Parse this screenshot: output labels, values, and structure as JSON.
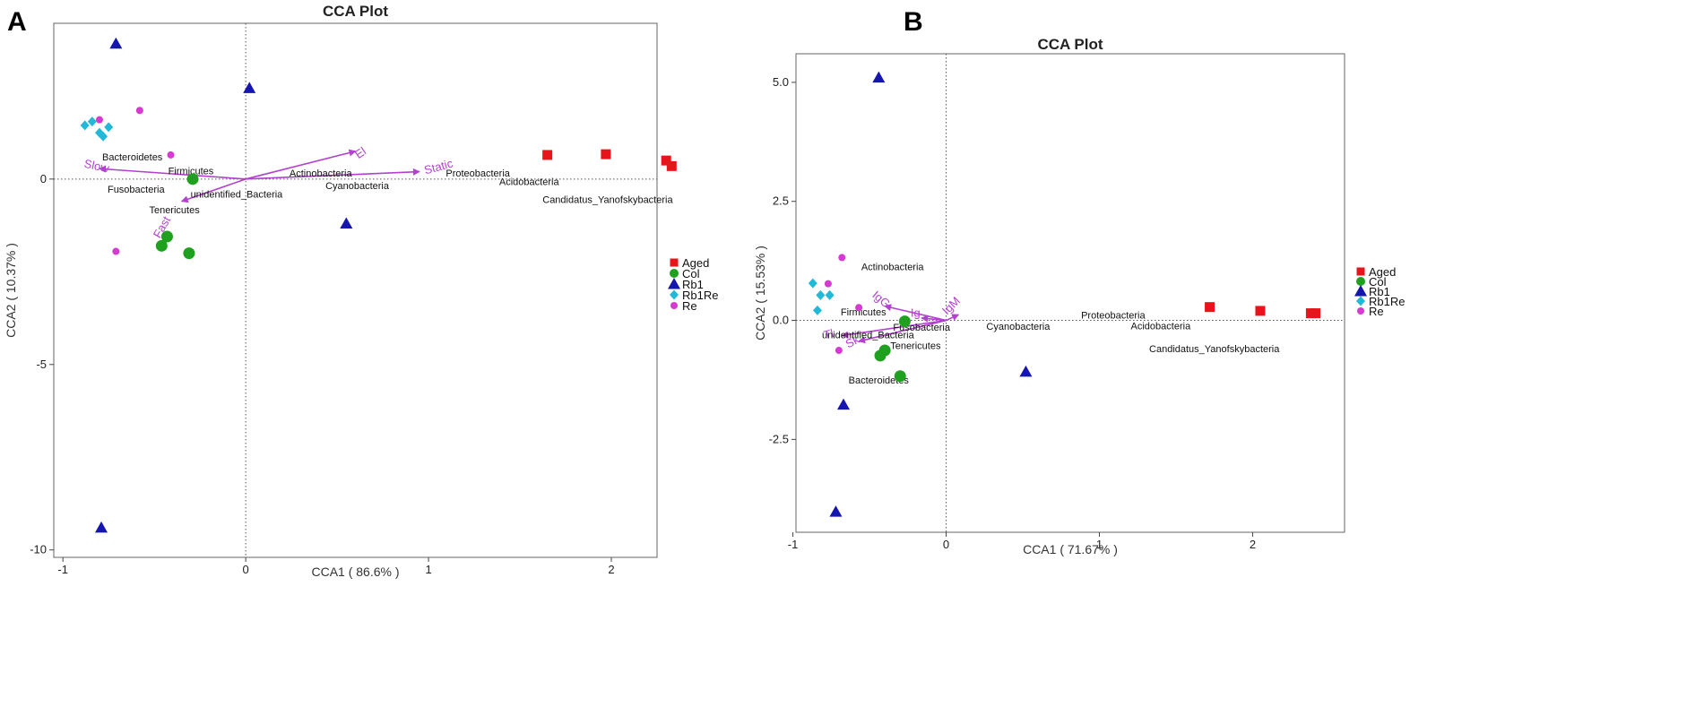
{
  "figure": {
    "panel_a_letter": "A",
    "panel_b_letter": "B"
  },
  "chart_data": [
    {
      "type": "scatter",
      "title": "CCA Plot",
      "xlabel": "CCA1 ( 86.6% )",
      "ylabel": "CCA2 ( 10.37% )",
      "xlim": [
        -1.05,
        2.25
      ],
      "ylim": [
        -10.2,
        4.2
      ],
      "xticks": [
        -1,
        0,
        1,
        2
      ],
      "yticks": [
        -10,
        -5,
        0
      ],
      "colors": {
        "Aged": "#e8141b",
        "Col": "#1fa01f",
        "Rb1": "#1515b0",
        "Rb1Re": "#22b8d8",
        "Re": "#d63ad0",
        "env": "#b340d0"
      },
      "groups": [
        {
          "name": "Aged",
          "marker": "square",
          "points": [
            [
              1.65,
              0.65
            ],
            [
              1.97,
              0.67
            ],
            [
              2.3,
              0.5
            ],
            [
              2.33,
              0.35
            ]
          ]
        },
        {
          "name": "Col",
          "marker": "circle",
          "points": [
            [
              -0.29,
              0.0
            ],
            [
              -0.43,
              -1.55
            ],
            [
              -0.46,
              -1.8
            ],
            [
              -0.31,
              -2.0
            ]
          ]
        },
        {
          "name": "Rb1",
          "marker": "triangle",
          "points": [
            [
              -0.71,
              3.65
            ],
            [
              0.02,
              2.45
            ],
            [
              0.55,
              -1.2
            ],
            [
              -0.79,
              -9.4
            ]
          ]
        },
        {
          "name": "Rb1Re",
          "marker": "diamond",
          "points": [
            [
              -0.88,
              1.45
            ],
            [
              -0.84,
              1.55
            ],
            [
              -0.8,
              1.25
            ],
            [
              -0.78,
              1.15
            ],
            [
              -0.75,
              1.4
            ]
          ]
        },
        {
          "name": "Re",
          "marker": "circle_small",
          "points": [
            [
              -0.58,
              1.85
            ],
            [
              -0.8,
              1.6
            ],
            [
              -0.41,
              0.65
            ],
            [
              -0.71,
              -1.95
            ]
          ]
        }
      ],
      "env_vectors": [
        {
          "name": "Slow",
          "end": [
            -0.8,
            0.28
          ],
          "label": [
            -0.82,
            0.25
          ],
          "rot": 12
        },
        {
          "name": "El",
          "end": [
            0.6,
            0.75
          ],
          "label": [
            0.64,
            0.62
          ],
          "rot": -35
        },
        {
          "name": "Static",
          "end": [
            0.95,
            0.2
          ],
          "label": [
            1.06,
            0.23
          ],
          "rot": -15
        },
        {
          "name": "Fast",
          "end": [
            -0.35,
            -0.6
          ],
          "label": [
            -0.44,
            -1.35
          ],
          "rot": -60
        }
      ],
      "species": [
        {
          "name": "Bacteroidetes",
          "x": -0.62,
          "y": 0.6
        },
        {
          "name": "Firmicutes",
          "x": -0.3,
          "y": 0.22
        },
        {
          "name": "Fusobacteria",
          "x": -0.6,
          "y": -0.27
        },
        {
          "name": "unidentified_Bacteria",
          "x": -0.05,
          "y": -0.4
        },
        {
          "name": "Tenericutes",
          "x": -0.39,
          "y": -0.82
        },
        {
          "name": "Actinobacteria",
          "x": 0.41,
          "y": 0.16
        },
        {
          "name": "Cyanobacteria",
          "x": 0.61,
          "y": -0.17
        },
        {
          "name": "Proteobacteria",
          "x": 1.27,
          "y": 0.16
        },
        {
          "name": "Acidobacteria",
          "x": 1.55,
          "y": -0.07
        },
        {
          "name": "Candidatus_Yanofskybacteria",
          "x": 1.98,
          "y": -0.55
        }
      ],
      "legend": [
        "Aged",
        "Col",
        "Rb1",
        "Rb1Re",
        "Re"
      ]
    },
    {
      "type": "scatter",
      "title": "CCA Plot",
      "xlabel": "CCA1 ( 71.67% )",
      "ylabel": "CCA2 ( 15.53% )",
      "xlim": [
        -0.98,
        2.6
      ],
      "ylim": [
        -4.45,
        5.6
      ],
      "xticks": [
        -1,
        0,
        1,
        2
      ],
      "xtick_labels": [
        "-1",
        "0",
        "1",
        "2"
      ],
      "yticks": [
        -2.5,
        0.0,
        2.5,
        5.0
      ],
      "ytick_labels": [
        "-2.5",
        "0.0",
        "2.5",
        "5.0"
      ],
      "colors": {
        "Aged": "#e8141b",
        "Col": "#1fa01f",
        "Rb1": "#1515b0",
        "Rb1Re": "#22b8d8",
        "Re": "#d63ad0",
        "env": "#b340d0"
      },
      "groups": [
        {
          "name": "Aged",
          "marker": "square",
          "points": [
            [
              1.72,
              0.28
            ],
            [
              2.05,
              0.2
            ],
            [
              2.38,
              0.15
            ],
            [
              2.41,
              0.15
            ]
          ]
        },
        {
          "name": "Col",
          "marker": "circle",
          "points": [
            [
              -0.27,
              -0.02
            ],
            [
              -0.4,
              -0.63
            ],
            [
              -0.43,
              -0.74
            ],
            [
              -0.3,
              -1.17
            ]
          ]
        },
        {
          "name": "Rb1",
          "marker": "triangle",
          "points": [
            [
              -0.44,
              5.1
            ],
            [
              0.52,
              -1.08
            ],
            [
              -0.67,
              -1.77
            ],
            [
              -0.72,
              -4.02
            ]
          ]
        },
        {
          "name": "Rb1Re",
          "marker": "diamond",
          "points": [
            [
              -0.87,
              0.78
            ],
            [
              -0.82,
              0.53
            ],
            [
              -0.76,
              0.53
            ],
            [
              -0.84,
              0.21
            ]
          ]
        },
        {
          "name": "Re",
          "marker": "circle_small",
          "points": [
            [
              -0.68,
              1.32
            ],
            [
              -0.77,
              0.77
            ],
            [
              -0.57,
              0.27
            ],
            [
              -0.7,
              -0.63
            ]
          ]
        }
      ],
      "env_vectors": [
        {
          "name": "IgG",
          "end": [
            -0.4,
            0.3
          ],
          "label": [
            -0.44,
            0.38
          ],
          "rot": 40
        },
        {
          "name": "IgM",
          "end": [
            0.08,
            0.12
          ],
          "label": [
            0.05,
            0.25
          ],
          "rot": -45
        },
        {
          "name": "Tl",
          "end": [
            -0.68,
            -0.32
          ],
          "label": [
            -0.76,
            -0.37
          ],
          "rot": -15
        },
        {
          "name": "Sk",
          "end": [
            -0.57,
            -0.44
          ],
          "label": [
            -0.6,
            -0.52
          ],
          "rot": -28
        },
        {
          "name": "Ig",
          "end": [
            -0.16,
            0.05
          ],
          "label": [
            -0.2,
            0.08
          ],
          "rot": 0
        }
      ],
      "species": [
        {
          "name": "Actinobacteria",
          "x": -0.35,
          "y": 1.13
        },
        {
          "name": "Firmicutes",
          "x": -0.54,
          "y": 0.18
        },
        {
          "name": "Fusobacteria",
          "x": -0.16,
          "y": -0.14
        },
        {
          "name": "unidentified_Bacteria",
          "x": -0.51,
          "y": -0.3
        },
        {
          "name": "Tenericutes",
          "x": -0.2,
          "y": -0.53
        },
        {
          "name": "Bacteroidetes",
          "x": -0.44,
          "y": -1.25
        },
        {
          "name": "Cyanobacteria",
          "x": 0.47,
          "y": -0.12
        },
        {
          "name": "Proteobacteria",
          "x": 1.09,
          "y": 0.11
        },
        {
          "name": "Acidobacteria",
          "x": 1.4,
          "y": -0.11
        },
        {
          "name": "Candidatus_Yanofskybacteria",
          "x": 1.75,
          "y": -0.59
        }
      ],
      "legend": [
        "Aged",
        "Col",
        "Rb1",
        "Rb1Re",
        "Re"
      ]
    }
  ]
}
